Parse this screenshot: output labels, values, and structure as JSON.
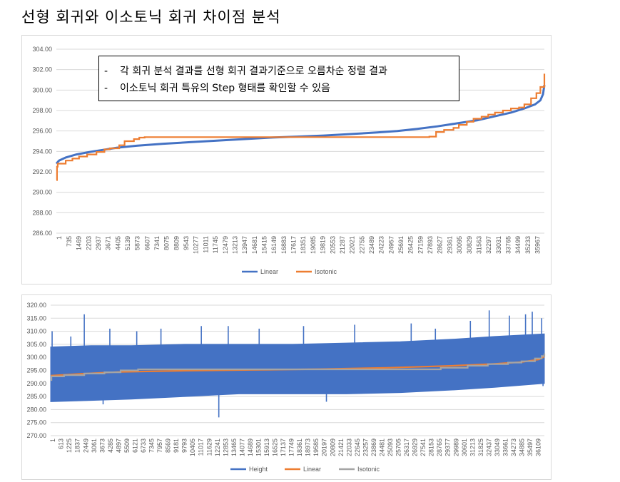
{
  "page": {
    "title": "선형 회귀와 이소토닉 회귀 차이점 분석"
  },
  "notes": [
    "각 회귀 분석 결과를 선형 회귀 결과기준으로 오름차순 정렬 결과",
    "이소토닉 회귀 특유의 Step 형태를 확인할 수 있음"
  ],
  "chart_data": [
    {
      "type": "line",
      "title": "",
      "xlabel": "",
      "ylabel": "",
      "ylim": [
        286,
        304
      ],
      "y_ticks": [
        "304.00",
        "302.00",
        "300.00",
        "298.00",
        "296.00",
        "294.00",
        "292.00",
        "290.00",
        "288.00",
        "286.00"
      ],
      "x_ticks": [
        "1",
        "735",
        "1469",
        "2203",
        "2937",
        "3671",
        "4405",
        "5139",
        "5873",
        "6607",
        "7341",
        "8075",
        "8809",
        "9543",
        "10277",
        "11011",
        "11745",
        "12479",
        "13213",
        "13947",
        "14681",
        "15415",
        "16149",
        "16883",
        "17617",
        "18351",
        "19085",
        "19819",
        "20553",
        "21287",
        "22021",
        "22755",
        "23489",
        "24223",
        "24957",
        "25691",
        "26425",
        "27159",
        "27893",
        "28627",
        "29361",
        "30095",
        "30829",
        "31563",
        "32297",
        "33031",
        "33765",
        "34499",
        "35233",
        "35967"
      ],
      "xlim": [
        1,
        36500
      ],
      "legend_position": "bottom",
      "grid": true,
      "series": [
        {
          "name": "Linear",
          "color": "#4472C4",
          "x": [
            1,
            200,
            700,
            1500,
            2500,
            3500,
            4500,
            6000,
            8000,
            10000,
            12000,
            14000,
            16000,
            18000,
            20000,
            22000,
            24000,
            25500,
            27000,
            28500,
            30000,
            31500,
            33000,
            34000,
            35000,
            35800,
            36200,
            36400,
            36500
          ],
          "values": [
            292.8,
            293.1,
            293.4,
            293.7,
            293.95,
            294.15,
            294.35,
            294.55,
            294.75,
            294.9,
            295.05,
            295.2,
            295.35,
            295.45,
            295.55,
            295.7,
            295.85,
            296.0,
            296.2,
            296.45,
            296.75,
            297.05,
            297.5,
            297.8,
            298.2,
            298.6,
            299.0,
            299.6,
            300.5
          ]
        },
        {
          "name": "Isotonic",
          "color": "#ED7D31",
          "x": [
            1,
            50,
            100,
            700,
            1200,
            1700,
            2300,
            3000,
            3600,
            4000,
            4700,
            5100,
            5800,
            6200,
            6600,
            7500,
            26000,
            27900,
            28400,
            29000,
            29700,
            30100,
            30700,
            31200,
            31800,
            32300,
            32800,
            33400,
            34000,
            34600,
            35000,
            35500,
            35900,
            36200,
            36500
          ],
          "values": [
            291.2,
            292.5,
            292.8,
            293.1,
            293.3,
            293.5,
            293.7,
            293.95,
            294.2,
            294.3,
            294.6,
            295.0,
            295.2,
            295.35,
            295.4,
            295.4,
            295.4,
            295.45,
            295.9,
            296.1,
            296.3,
            296.6,
            296.9,
            297.2,
            297.4,
            297.6,
            297.8,
            298.0,
            298.2,
            298.3,
            298.6,
            299.2,
            299.7,
            300.3,
            301.6
          ]
        }
      ]
    },
    {
      "type": "line",
      "title": "",
      "xlabel": "",
      "ylabel": "",
      "ylim": [
        270,
        320
      ],
      "y_ticks": [
        "320.00",
        "315.00",
        "310.00",
        "305.00",
        "300.00",
        "295.00",
        "290.00",
        "285.00",
        "280.00",
        "275.00",
        "270.00"
      ],
      "x_ticks": [
        "1",
        "613",
        "1225",
        "1837",
        "2449",
        "3061",
        "3673",
        "4285",
        "4897",
        "5509",
        "6121",
        "6733",
        "7345",
        "7957",
        "8569",
        "9181",
        "9793",
        "10405",
        "11017",
        "11629",
        "12241",
        "12853",
        "13465",
        "14077",
        "14689",
        "15301",
        "15913",
        "16525",
        "17137",
        "17749",
        "18361",
        "18973",
        "19585",
        "20197",
        "20809",
        "21421",
        "22033",
        "22645",
        "23257",
        "23869",
        "24481",
        "25093",
        "25705",
        "26317",
        "26929",
        "27541",
        "28153",
        "28765",
        "29377",
        "29989",
        "30601",
        "31213",
        "31825",
        "32437",
        "33049",
        "33661",
        "34273",
        "34885",
        "35497",
        "36109"
      ],
      "xlim": [
        1,
        36700
      ],
      "legend_position": "bottom",
      "grid": true,
      "height_band": {
        "x": [
          1,
          3000,
          6000,
          10000,
          14000,
          18000,
          22000,
          26000,
          30000,
          33000,
          36700
        ],
        "upper": [
          304.0,
          304.5,
          304.5,
          305.0,
          305.0,
          305.0,
          305.5,
          306.0,
          307.0,
          308.0,
          309.0
        ],
        "lower": [
          283.0,
          283.5,
          284.0,
          285.0,
          286.0,
          286.0,
          286.0,
          286.5,
          287.5,
          288.5,
          290.0
        ]
      },
      "height_spikes": [
        {
          "x": 110,
          "y": 310
        },
        {
          "x": 300,
          "y": 287
        },
        {
          "x": 1500,
          "y": 308
        },
        {
          "x": 2500,
          "y": 316.5
        },
        {
          "x": 3900,
          "y": 282
        },
        {
          "x": 4400,
          "y": 311
        },
        {
          "x": 6400,
          "y": 310
        },
        {
          "x": 8200,
          "y": 311
        },
        {
          "x": 11200,
          "y": 312
        },
        {
          "x": 12500,
          "y": 277
        },
        {
          "x": 13200,
          "y": 312
        },
        {
          "x": 15500,
          "y": 311
        },
        {
          "x": 18800,
          "y": 312
        },
        {
          "x": 20500,
          "y": 283
        },
        {
          "x": 22600,
          "y": 312.5
        },
        {
          "x": 26800,
          "y": 313
        },
        {
          "x": 28600,
          "y": 311
        },
        {
          "x": 31200,
          "y": 314
        },
        {
          "x": 32600,
          "y": 318
        },
        {
          "x": 34100,
          "y": 316
        },
        {
          "x": 35300,
          "y": 316.5
        },
        {
          "x": 35800,
          "y": 317.5
        },
        {
          "x": 36500,
          "y": 315
        },
        {
          "x": 36600,
          "y": 289
        }
      ],
      "series": [
        {
          "name": "Height",
          "color": "#4472C4"
        },
        {
          "name": "Linear",
          "color": "#ED7D31",
          "x": [
            1,
            2000,
            5000,
            10000,
            15000,
            20000,
            25000,
            30000,
            33000,
            35000,
            36300,
            36700
          ],
          "values": [
            293.0,
            293.6,
            294.4,
            294.9,
            295.2,
            295.5,
            296.0,
            296.8,
            297.5,
            298.2,
            299.2,
            300.3
          ]
        },
        {
          "name": "Isotonic",
          "color": "#A5A5A5",
          "x": [
            1,
            60,
            1000,
            2500,
            4000,
            5200,
            6500,
            27000,
            29000,
            31000,
            32500,
            34000,
            35000,
            36000,
            36500,
            36700
          ],
          "values": [
            291.3,
            292.7,
            293.2,
            293.8,
            294.3,
            295.0,
            295.4,
            295.4,
            296.0,
            296.8,
            297.4,
            298.0,
            298.5,
            299.6,
            300.5,
            301.5
          ]
        }
      ]
    }
  ]
}
